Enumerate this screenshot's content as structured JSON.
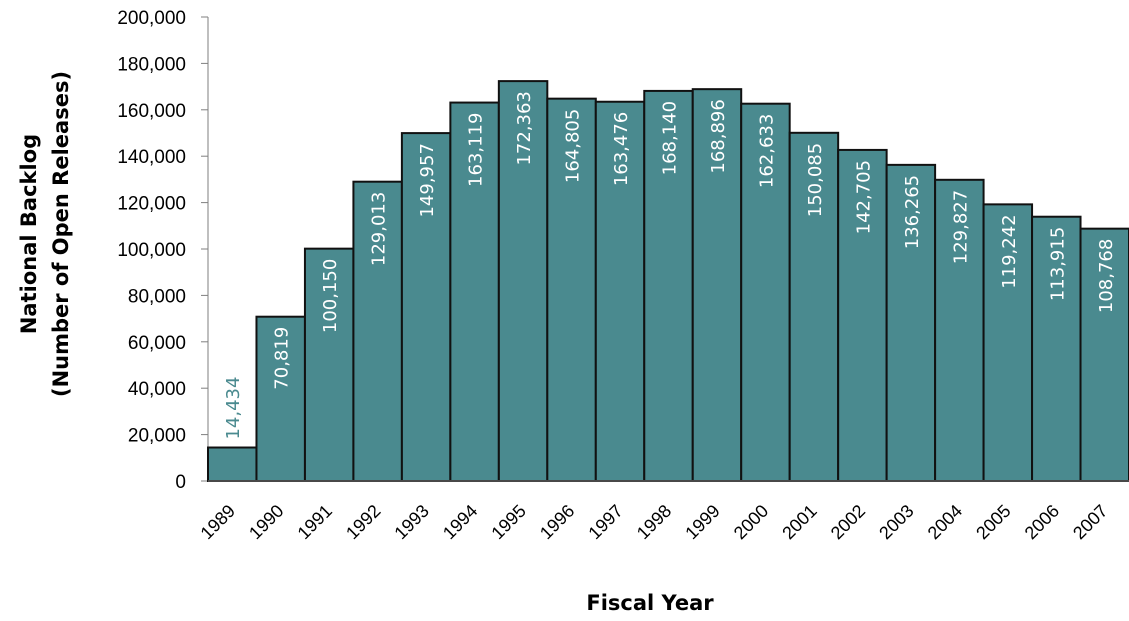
{
  "chart_data": {
    "type": "bar",
    "categories": [
      "1989",
      "1990",
      "1991",
      "1992",
      "1993",
      "1994",
      "1995",
      "1996",
      "1997",
      "1998",
      "1999",
      "2000",
      "2001",
      "2002",
      "2003",
      "2004",
      "2005",
      "2006",
      "2007"
    ],
    "values": [
      14434,
      70819,
      100150,
      129013,
      149957,
      163119,
      172363,
      164805,
      163476,
      168140,
      168896,
      162633,
      150085,
      142705,
      136265,
      129827,
      119242,
      113915,
      108768
    ],
    "data_labels": [
      "14,434",
      "70,819",
      "100,150",
      "129,013",
      "149,957",
      "163,119",
      "172,363",
      "164,805",
      "163,476",
      "168,140",
      "168,896",
      "162,633",
      "150,085",
      "142,705",
      "136,265",
      "129,827",
      "119,242",
      "113,915",
      "108,768"
    ],
    "title": "",
    "xlabel": "Fiscal Year",
    "ylabel_line1": "National Backlog",
    "ylabel_line2": "(Number of Open Releases)",
    "ylim": [
      0,
      200000
    ],
    "yticks": [
      0,
      20000,
      40000,
      60000,
      80000,
      100000,
      120000,
      140000,
      160000,
      180000,
      200000
    ],
    "ytick_labels": [
      "0",
      "20,000",
      "40,000",
      "60,000",
      "80,000",
      "100,000",
      "120,000",
      "140,000",
      "160,000",
      "180,000",
      "200,000"
    ],
    "grid": false,
    "legend": "none",
    "colors": {
      "bar_fill": "#4a8a8f",
      "bar_edge": "#111111",
      "label_inside": "#ffffff",
      "label_outside": "#4a8a8f"
    }
  }
}
